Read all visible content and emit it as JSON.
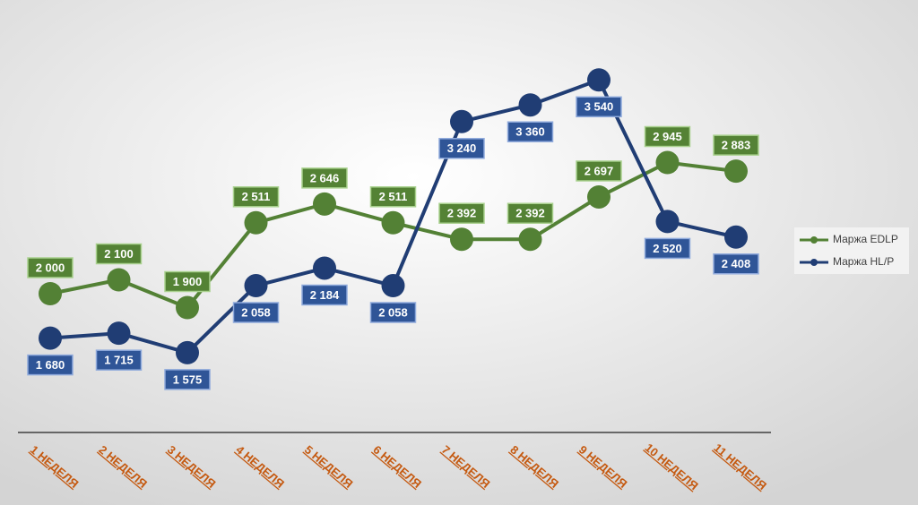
{
  "chart_data": {
    "type": "line",
    "categories": [
      "1 НЕДЕЛЯ",
      "2 НЕДЕЛЯ",
      "3 НЕДЕЛЯ",
      "4 НЕДЕЛЯ",
      "5 НЕДЕЛЯ",
      "6 НЕДЕЛЯ",
      "7 НЕДЕЛЯ",
      "8 НЕДЕЛЯ",
      "9 НЕДЕЛЯ",
      "10 НЕДЕЛЯ",
      "11 НЕДЕЛЯ"
    ],
    "series": [
      {
        "name": "Маржа EDLP",
        "color": "#538135",
        "values": [
          2000,
          2100,
          1900,
          2511,
          2646,
          2511,
          2392,
          2392,
          2697,
          2945,
          2883
        ],
        "value_labels": [
          "2 000",
          "2 100",
          "1 900",
          "2 511",
          "2 646",
          "2 511",
          "2 392",
          "2 392",
          "2 697",
          "2 945",
          "2 883"
        ]
      },
      {
        "name": "Маржа HL/P",
        "color": "#203d74",
        "values": [
          1680,
          1715,
          1575,
          2058,
          2184,
          2058,
          3240,
          3360,
          3540,
          2520,
          2408
        ],
        "value_labels": [
          "1 680",
          "1 715",
          "1 575",
          "2 058",
          "2 184",
          "2 058",
          "3 240",
          "3 360",
          "3 540",
          "2 520",
          "2 408"
        ]
      }
    ],
    "ylim": [
      1000,
      4000
    ],
    "legend": "right"
  }
}
